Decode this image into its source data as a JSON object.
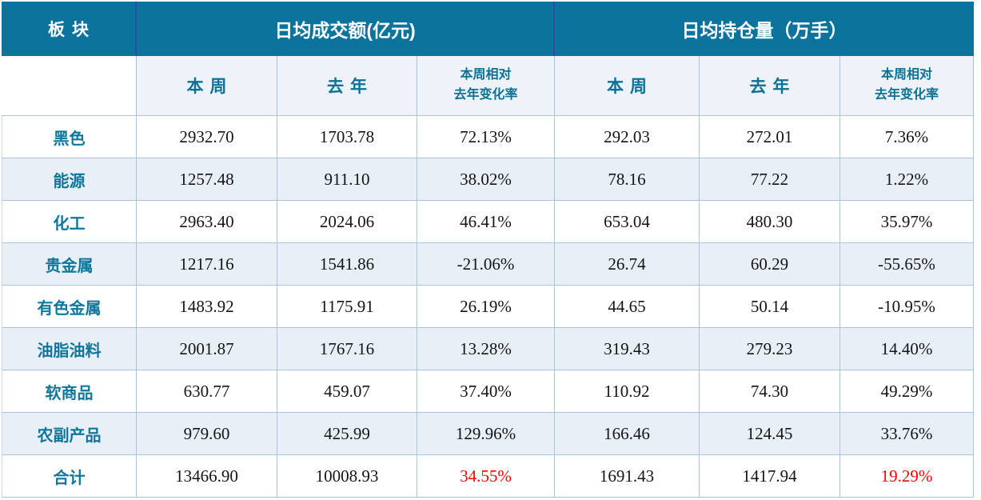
{
  "chart_data": {
    "type": "table",
    "header": {
      "sector_label": "板块",
      "group_turnover": "日均成交额(亿元)",
      "group_open_interest": "日均持仓量（万手）",
      "sub_week": "本周",
      "sub_last_year": "去年",
      "sub_change_line1": "本周相对",
      "sub_change_line2": "去年变化率"
    },
    "rows": [
      {
        "sector": "黑色",
        "turnover_week": "2932.70",
        "turnover_year": "1703.78",
        "turnover_change": "72.13%",
        "oi_week": "292.03",
        "oi_year": "272.01",
        "oi_change": "7.36%"
      },
      {
        "sector": "能源",
        "turnover_week": "1257.48",
        "turnover_year": "911.10",
        "turnover_change": "38.02%",
        "oi_week": "78.16",
        "oi_year": "77.22",
        "oi_change": "1.22%"
      },
      {
        "sector": "化工",
        "turnover_week": "2963.40",
        "turnover_year": "2024.06",
        "turnover_change": "46.41%",
        "oi_week": "653.04",
        "oi_year": "480.30",
        "oi_change": "35.97%"
      },
      {
        "sector": "贵金属",
        "turnover_week": "1217.16",
        "turnover_year": "1541.86",
        "turnover_change": "-21.06%",
        "oi_week": "26.74",
        "oi_year": "60.29",
        "oi_change": "-55.65%"
      },
      {
        "sector": "有色金属",
        "turnover_week": "1483.92",
        "turnover_year": "1175.91",
        "turnover_change": "26.19%",
        "oi_week": "44.65",
        "oi_year": "50.14",
        "oi_change": "-10.95%"
      },
      {
        "sector": "油脂油料",
        "turnover_week": "2001.87",
        "turnover_year": "1767.16",
        "turnover_change": "13.28%",
        "oi_week": "319.43",
        "oi_year": "279.23",
        "oi_change": "14.40%"
      },
      {
        "sector": "软商品",
        "turnover_week": "630.77",
        "turnover_year": "459.07",
        "turnover_change": "37.40%",
        "oi_week": "110.92",
        "oi_year": "74.30",
        "oi_change": "49.29%"
      },
      {
        "sector": "农副产品",
        "turnover_week": "979.60",
        "turnover_year": "425.99",
        "turnover_change": "129.96%",
        "oi_week": "166.46",
        "oi_year": "124.45",
        "oi_change": "33.76%"
      },
      {
        "sector": "合计",
        "turnover_week": "13466.90",
        "turnover_year": "10008.93",
        "turnover_change": "34.55%",
        "oi_week": "1691.43",
        "oi_year": "1417.94",
        "oi_change": "19.29%"
      }
    ]
  },
  "colors": {
    "header_bg": "#0B739C",
    "header_text": "#FFFFFF",
    "header_divider": "#2F4EA0",
    "subheader_bg": "#EEF2F9",
    "accent_teal_text": "#0C7195",
    "sector_text": "#10779B",
    "stripe_bg": "#E9EFF6",
    "cell_border": "#A9C3E0",
    "number_text": "#141414",
    "total_change_red": "#FF0000"
  }
}
